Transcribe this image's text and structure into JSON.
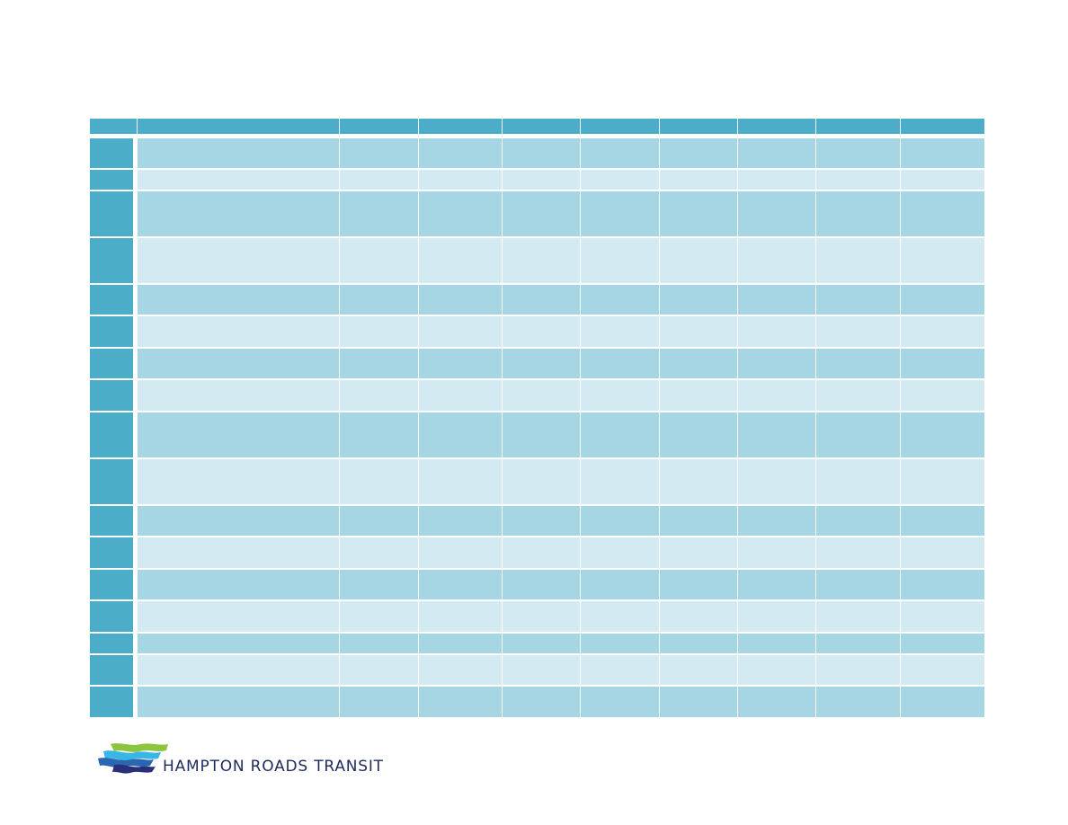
{
  "table": {
    "columns": 10,
    "rows": 17
  },
  "logo": {
    "text": "HAMPTON ROADS TRANSIT",
    "icon": "hrt-waves-logo",
    "colors": {
      "green": "#8cc63f",
      "light_blue": "#39b6e6",
      "blue": "#2b66b1",
      "navy": "#2a2f7a"
    }
  },
  "colors": {
    "header": "#4badc7",
    "band_dark": "#a6d5e4",
    "band_light": "#d3eaf2"
  }
}
